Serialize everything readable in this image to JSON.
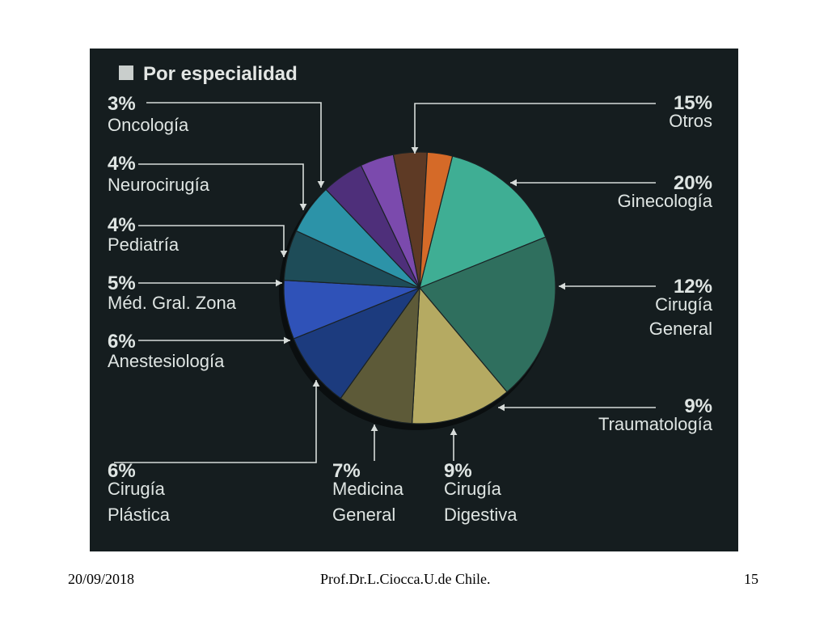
{
  "chart_data": {
    "type": "pie",
    "title": "Por especialidad",
    "slices": [
      {
        "label": "Otros",
        "value": 15,
        "pct_label": "15%",
        "color": "#3fae94"
      },
      {
        "label": "Ginecología",
        "value": 20,
        "pct_label": "20%",
        "color": "#2f6f5e"
      },
      {
        "label": "Cirugía General",
        "value": 12,
        "pct_label": "12%",
        "color": "#b5aa62"
      },
      {
        "label": "Traumatología",
        "value": 9,
        "pct_label": "9%",
        "color": "#5d5a38"
      },
      {
        "label": "Cirugía Digestiva",
        "value": 9,
        "pct_label": "9%",
        "color": "#1c3b7e"
      },
      {
        "label": "Medicina General",
        "value": 7,
        "pct_label": "7%",
        "color": "#2f52b8"
      },
      {
        "label": "Cirugía Plástica",
        "value": 6,
        "pct_label": "6%",
        "color": "#1e4c58"
      },
      {
        "label": "Anestesiología",
        "value": 6,
        "pct_label": "6%",
        "color": "#2c93a8"
      },
      {
        "label": "Méd. Gral. Zona",
        "value": 5,
        "pct_label": "5%",
        "color": "#4e2f7a"
      },
      {
        "label": "Pediatría",
        "value": 4,
        "pct_label": "4%",
        "color": "#7b4aad"
      },
      {
        "label": "Neurocirugía",
        "value": 4,
        "pct_label": "4%",
        "color": "#5e3a25"
      },
      {
        "label": "Oncología",
        "value": 3,
        "pct_label": "3%",
        "color": "#d56a28"
      }
    ]
  },
  "footer": {
    "date": "20/09/2018",
    "author": "Prof.Dr.L.Ciocca.U.de Chile.",
    "page": "15"
  }
}
